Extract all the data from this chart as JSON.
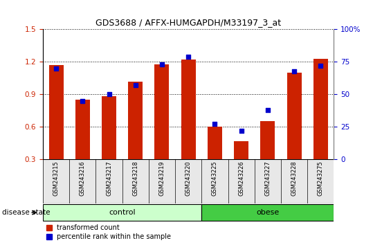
{
  "title": "GDS3688 / AFFX-HUMGAPDH/M33197_3_at",
  "samples": [
    "GSM243215",
    "GSM243216",
    "GSM243217",
    "GSM243218",
    "GSM243219",
    "GSM243220",
    "GSM243225",
    "GSM243226",
    "GSM243227",
    "GSM243228",
    "GSM243275"
  ],
  "transformed_count": [
    1.17,
    0.85,
    0.88,
    1.02,
    1.18,
    1.22,
    0.6,
    0.47,
    0.65,
    1.1,
    1.23
  ],
  "percentile_rank": [
    70,
    45,
    50,
    57,
    73,
    79,
    27,
    22,
    38,
    68,
    72
  ],
  "ylim_left": [
    0.3,
    1.5
  ],
  "ylim_right": [
    0,
    100
  ],
  "yticks_left": [
    0.3,
    0.6,
    0.9,
    1.2,
    1.5
  ],
  "yticks_right": [
    0,
    25,
    50,
    75,
    100
  ],
  "yticklabels_right": [
    "0",
    "25",
    "50",
    "75",
    "100%"
  ],
  "bar_color": "#cc2200",
  "dot_color": "#0000cc",
  "n_control": 6,
  "n_obese": 5,
  "control_label": "control",
  "obese_label": "obese",
  "disease_state_label": "disease state",
  "legend_red": "transformed count",
  "legend_blue": "percentile rank within the sample",
  "control_color": "#ccffcc",
  "obese_color": "#44cc44",
  "bar_width": 0.55,
  "dot_size": 18,
  "bg_color": "#e8e8e8"
}
